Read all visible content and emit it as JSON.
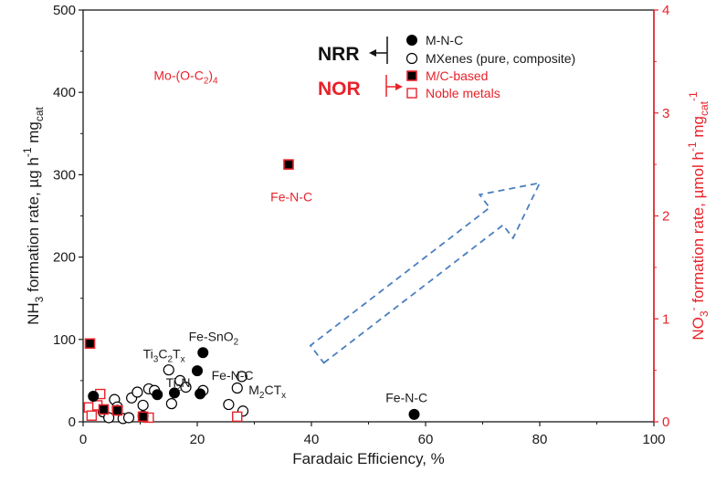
{
  "chart_data": {
    "type": "scatter",
    "xlabel": "Faradaic Efficiency, %",
    "ylabel_left": {
      "pre": "NH",
      "sub": "3",
      "mid": " formation rate, µg h",
      "sup1": "-1",
      "mid2": " mg",
      "sub2": "cat"
    },
    "ylabel_right": {
      "pre": "NO",
      "sub": "3",
      "sup0": "-",
      "mid": " formation rate, µmol h",
      "sup1": "-1",
      "mid2": " mg",
      "sub2": "cat",
      "sup2": "-1"
    },
    "xlim": [
      0,
      100
    ],
    "ylim_left": [
      0,
      500
    ],
    "ylim_right": [
      0,
      4
    ],
    "x_ticks": [
      "0",
      "20",
      "40",
      "60",
      "80",
      "100"
    ],
    "y_ticks_left": [
      "0",
      "100",
      "200",
      "300",
      "400",
      "500"
    ],
    "y_ticks_right": [
      "0",
      "1",
      "2",
      "3",
      "4"
    ],
    "colors": {
      "nrr": "#000000",
      "nor": "#e8222a",
      "arrow": "#4a7fc0"
    },
    "legend": {
      "nrr_label": "NRR",
      "nor_label": "NOR",
      "items": [
        {
          "label": "M-N-C",
          "marker": "filled-circle"
        },
        {
          "label": "MXenes (pure, composite)",
          "marker": "open-circle"
        },
        {
          "label": "M/C-based",
          "marker": "filled-square-red-edge"
        },
        {
          "label": "Noble metals",
          "marker": "open-square-red"
        }
      ]
    },
    "series": [
      {
        "name": "M-N-C",
        "marker": "filled-circle",
        "points": [
          {
            "x": 1.8,
            "y": 31
          },
          {
            "x": 6,
            "y": 14
          },
          {
            "x": 10.5,
            "y": 7
          },
          {
            "x": 13,
            "y": 33
          },
          {
            "x": 16,
            "y": 35
          },
          {
            "x": 20,
            "y": 62
          },
          {
            "x": 20.5,
            "y": 34
          },
          {
            "x": 21,
            "y": 84
          },
          {
            "x": 58,
            "y": 9
          }
        ]
      },
      {
        "name": "MXenes (pure, composite)",
        "marker": "open-circle",
        "points": [
          {
            "x": 3.5,
            "y": 12
          },
          {
            "x": 4.5,
            "y": 5
          },
          {
            "x": 5.5,
            "y": 27
          },
          {
            "x": 6,
            "y": 18
          },
          {
            "x": 7,
            "y": 4
          },
          {
            "x": 8,
            "y": 5
          },
          {
            "x": 8.5,
            "y": 29
          },
          {
            "x": 9.5,
            "y": 36
          },
          {
            "x": 10.5,
            "y": 20
          },
          {
            "x": 11.5,
            "y": 40
          },
          {
            "x": 12.5,
            "y": 38
          },
          {
            "x": 15,
            "y": 63
          },
          {
            "x": 15.5,
            "y": 22
          },
          {
            "x": 17,
            "y": 50
          },
          {
            "x": 18,
            "y": 42
          },
          {
            "x": 21,
            "y": 38
          },
          {
            "x": 25.5,
            "y": 21
          },
          {
            "x": 27,
            "y": 41
          },
          {
            "x": 27.8,
            "y": 55
          },
          {
            "x": 28,
            "y": 13
          }
        ]
      },
      {
        "name": "M/C-based",
        "marker": "filled-square-red-edge",
        "points": [
          {
            "x": 1.2,
            "y": 0.76
          },
          {
            "x": 3.6,
            "y": 0.12
          },
          {
            "x": 6,
            "y": 0.11
          },
          {
            "x": 10.5,
            "y": 0.05
          },
          {
            "x": 36,
            "y": 2.5
          }
        ]
      },
      {
        "name": "Noble metals",
        "marker": "open-square-red",
        "points": [
          {
            "x": 1,
            "y": 0.14
          },
          {
            "x": 1.5,
            "y": 0.06
          },
          {
            "x": 2.5,
            "y": 0.16
          },
          {
            "x": 3,
            "y": 0.27
          },
          {
            "x": 11.5,
            "y": 0.04
          },
          {
            "x": 27,
            "y": 0.05
          }
        ]
      }
    ],
    "annotations": [
      {
        "parts": [
          {
            "t": "Mo-(O-C"
          },
          {
            "t": "2",
            "sub": true
          },
          {
            "t": ")"
          },
          {
            "t": "4",
            "sub": true
          }
        ],
        "x": 18,
        "y": 415,
        "color": "red",
        "anchor": "middle"
      },
      {
        "parts": [
          {
            "t": "Fe-N-C"
          }
        ],
        "x": 36.5,
        "y": 268,
        "color": "red",
        "anchor": "middle"
      },
      {
        "parts": [
          {
            "t": "Fe-SnO"
          },
          {
            "t": "2",
            "sub": true
          }
        ],
        "x": 18.5,
        "y": 98,
        "color": "black",
        "anchor": "start"
      },
      {
        "parts": [
          {
            "t": "Ti"
          },
          {
            "t": "3",
            "sub": true
          },
          {
            "t": "C"
          },
          {
            "t": "2",
            "sub": true
          },
          {
            "t": "T"
          },
          {
            "t": "x",
            "sub": true
          }
        ],
        "x": 10.5,
        "y": 77,
        "color": "black",
        "anchor": "start"
      },
      {
        "parts": [
          {
            "t": "Fe-N-C"
          }
        ],
        "x": 22.5,
        "y": 51,
        "color": "black",
        "anchor": "start"
      },
      {
        "parts": [
          {
            "t": "Ti"
          },
          {
            "t": "2",
            "sub": true
          },
          {
            "t": "N"
          }
        ],
        "x": 14.5,
        "y": 42,
        "color": "black",
        "anchor": "start"
      },
      {
        "parts": [
          {
            "t": "M"
          },
          {
            "t": "2",
            "sub": true
          },
          {
            "t": "CT"
          },
          {
            "t": "x",
            "sub": true
          }
        ],
        "x": 29,
        "y": 33,
        "color": "black",
        "anchor": "start"
      },
      {
        "parts": [
          {
            "t": "Fe-N-C"
          }
        ],
        "x": 53,
        "y": 24,
        "color": "black",
        "anchor": "start"
      }
    ],
    "arrow": {
      "from": [
        41,
        82
      ],
      "to": [
        80,
        290
      ],
      "style": "dashed-hollow"
    }
  }
}
